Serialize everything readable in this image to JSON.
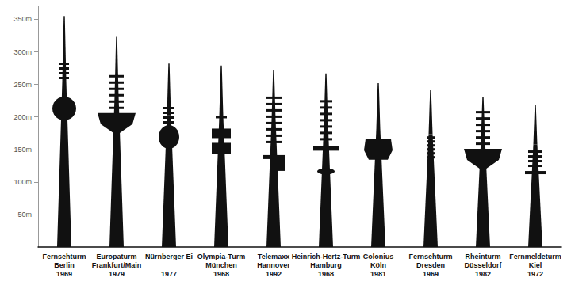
{
  "chart_data": {
    "type": "bar",
    "categories": [
      "Fernsehturm\nBerlin\n1969",
      "Europaturm\nFrankfurt/Main\n1979",
      "Nürnberger Ei\n\n1977",
      "Olympia-Turm\nMünchen\n1968",
      "Telemaxx\nHannover\n1992",
      "Heinrich-Hertz-Turm\nHamburg\n1968",
      "Colonius\nKöln\n1981",
      "Fernsehturm\nDresden\n1969",
      "Rheinturm\nDüsseldorf\n1982",
      "Fernmeldeturm\nKiel\n1972"
    ],
    "values": [
      355,
      323,
      282,
      279,
      272,
      267,
      252,
      241,
      231,
      219
    ],
    "color": "#111111",
    "ylim": [
      0,
      370
    ],
    "yticks": [
      {
        "value": 50,
        "label": "50m"
      },
      {
        "value": 100,
        "label": "100m"
      },
      {
        "value": 150,
        "label": "150m"
      },
      {
        "value": 200,
        "label": "200m"
      },
      {
        "value": 250,
        "label": "250m"
      },
      {
        "value": 300,
        "label": "300m"
      },
      {
        "value": 350,
        "label": "350m"
      }
    ],
    "grid": false
  }
}
